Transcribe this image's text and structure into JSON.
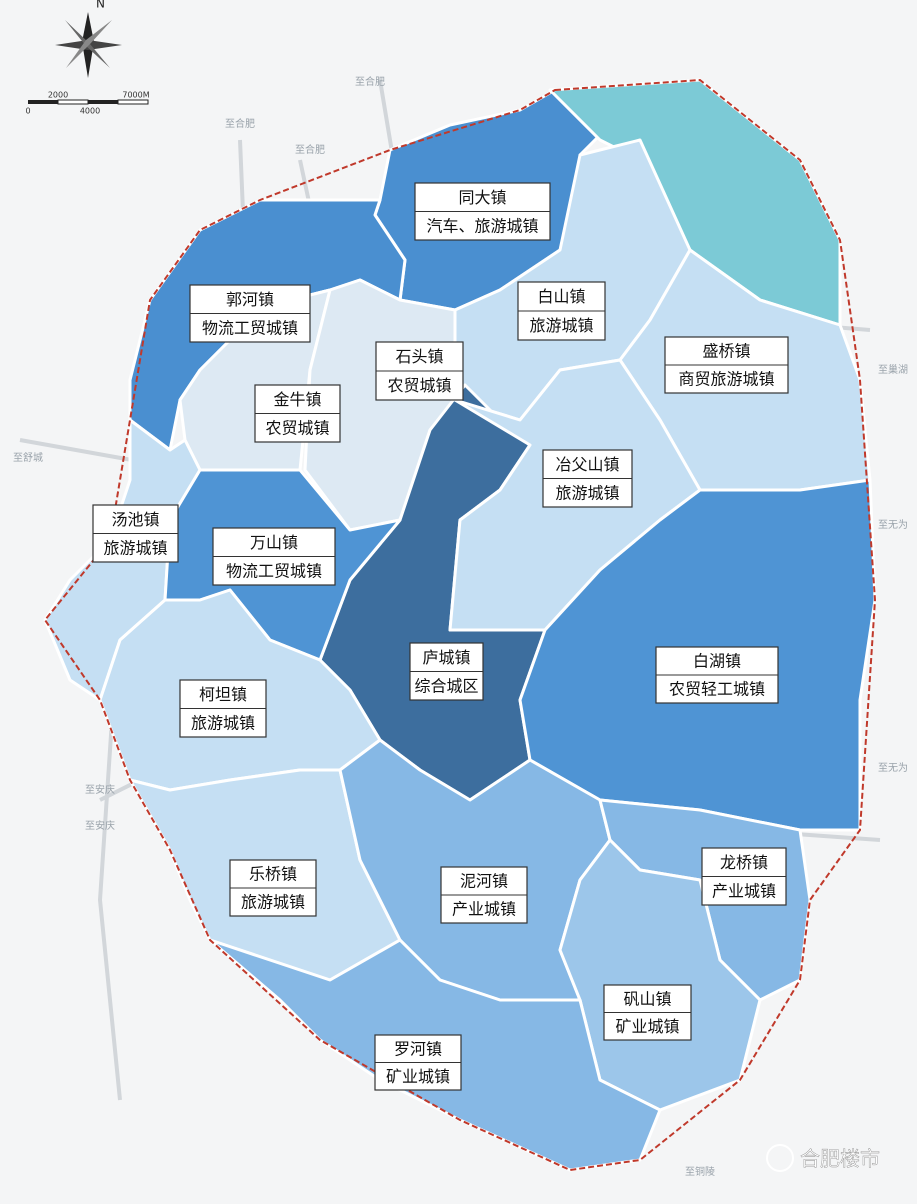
{
  "compass": "N",
  "scale": {
    "labels": [
      "0",
      "2000",
      "4000",
      "7000M"
    ]
  },
  "towns": [
    {
      "name": "同大镇",
      "role": "汽车、旅游城镇"
    },
    {
      "name": "郭河镇",
      "role": "物流工贸城镇"
    },
    {
      "name": "白山镇",
      "role": "旅游城镇"
    },
    {
      "name": "石头镇",
      "role": "农贸城镇"
    },
    {
      "name": "盛桥镇",
      "role": "商贸旅游城镇"
    },
    {
      "name": "金牛镇",
      "role": "农贸城镇"
    },
    {
      "name": "冶父山镇",
      "role": "旅游城镇"
    },
    {
      "name": "汤池镇",
      "role": "旅游城镇"
    },
    {
      "name": "万山镇",
      "role": "物流工贸城镇"
    },
    {
      "name": "庐城镇",
      "role": "综合城区"
    },
    {
      "name": "白湖镇",
      "role": "农贸轻工城镇"
    },
    {
      "name": "柯坦镇",
      "role": "旅游城镇"
    },
    {
      "name": "乐桥镇",
      "role": "旅游城镇"
    },
    {
      "name": "泥河镇",
      "role": "产业城镇"
    },
    {
      "name": "龙桥镇",
      "role": "产业城镇"
    },
    {
      "name": "矾山镇",
      "role": "矿业城镇"
    },
    {
      "name": "罗河镇",
      "role": "矿业城镇"
    }
  ],
  "place_labels": [
    "至合肥",
    "至合肥",
    "至合肥",
    "至舒城",
    "至巢湖",
    "至无为",
    "至无为",
    "至安庆",
    "至安庆",
    "至铜陵"
  ],
  "watermark": "合肥楼市"
}
